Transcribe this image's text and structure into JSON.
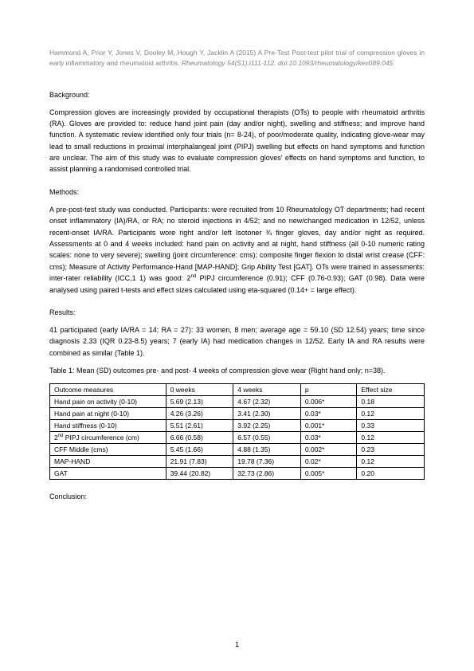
{
  "citation": {
    "authors_year": "Hammond A, Prior Y, Jones V, Dooley M, Hough Y, Jacklin A (2015) A Pre-Test Post-test pilot trial of compression gloves in early inflammatory and rheumatoid arthritis.",
    "journal": "Rheumatology 54(S1):i111-112. doi:10.1093/rheumatology/kev089.045"
  },
  "sections": {
    "background": {
      "heading": "Background:",
      "body": "Compression gloves are increasingly provided by occupational therapists (OTs) to people with rheumatoid arthritis (RA).  Gloves are provided to: reduce hand joint pain (day and/or night), swelling and stiffness; and improve hand function.  A systematic review identified only four trials (n= 8-24), of poor/moderate quality, indicating glove-wear may lead to small reductions in proximal interphalangeal joint (PIPJ) swelling but effects on hand symptoms and function are unclear. The aim of this study was to evaluate compression gloves' effects on hand symptoms and function, to assist planning a randomised controlled trial."
    },
    "methods": {
      "heading": "Methods:",
      "body_a": "A pre-post-test study was conducted. Participants: were recruited from 10 Rheumatology OT departments; had recent onset inflammatory (IA)/RA, or RA; no steroid injections in 4/52; and no new/changed medication in 12/52, unless recent-onset IA/RA.  Participants wore right and/or left Isotoner ¾ finger gloves, day and/or night as required.  Assessments at 0 and 4 weeks included: hand pain on activity and at night, hand stiffness   (all 0-10 numeric rating scales: none to very severe); swelling (joint circumference: cms); composite finger flexion to distal wrist crease (CFF: cms); Measure of Activity Performance-Hand [MAP-HAND]; Grip Ability Test [GAT].  OTs were trained in assessments: inter-rater reliability (ICC,1 1) was good: 2",
      "body_b": " PIPJ circumference (0.91); CFF (0.76-0.93); GAT (0.98). Data were analysed using paired t-tests and effect sizes calculated using eta-squared (0.14+ = large effect)."
    },
    "results": {
      "heading": "Results:",
      "body": "41 participated (early IA/RA = 14; RA = 27): 33 women, 8 men; average age = 59.10 (SD 12.54) years; time since diagnosis 2.33 (IQR 0.23-8.5) years; 7 (early IA) had medication changes in 12/52. Early IA and RA results were combined as similar (Table 1)."
    },
    "table": {
      "caption": "Table 1: Mean (SD) outcomes pre- and post- 4 weeks of compression glove wear (Right hand only; n=38).",
      "headers": [
        "Outcome measures",
        "0 weeks",
        "4 weeks",
        "p",
        "Effect size"
      ],
      "rows": [
        [
          "Hand pain on activity (0-10)",
          "5.69 (2.13)",
          "4.67 (2.32)",
          "0.006*",
          "0.18"
        ],
        [
          "Hand pain at night (0-10)",
          "4.26 (3.26)",
          "3.41 (2.30)",
          "0.03*",
          "0.12"
        ],
        [
          "Hand stiffness (0-10)",
          "5.51 (2.61)",
          "3.92 (2.25)",
          "0.001*",
          "0.33"
        ],
        [
          "__PIPJ__",
          "6.66 (0.58)",
          "6.57 (0.55)",
          "0.03*",
          "0.12"
        ],
        [
          "CFF Middle (cms)",
          "5.45 (1.66)",
          "4.88 (1.35)",
          "0.002*",
          "0.23"
        ],
        [
          "MAP-HAND",
          "21.91 (7.83)",
          "19.78 (7.36)",
          "0.02*",
          "0.12"
        ],
        [
          "GAT",
          "39.44 (20.82)",
          "32.73 (2.86)",
          "0.005*",
          "0.20"
        ]
      ],
      "pipj_prefix": "2",
      "pipj_sup": "nd",
      "pipj_suffix": " PIPJ circumference (cm)",
      "colwidths": [
        "31%",
        "18%",
        "18%",
        "15%",
        "18%"
      ]
    },
    "conclusion": {
      "heading": "Conclusion:"
    }
  },
  "pageNumber": "1",
  "colors": {
    "citation_color": "#808080",
    "text_color": "#000000",
    "border_color": "#000000",
    "background": "#ffffff"
  }
}
